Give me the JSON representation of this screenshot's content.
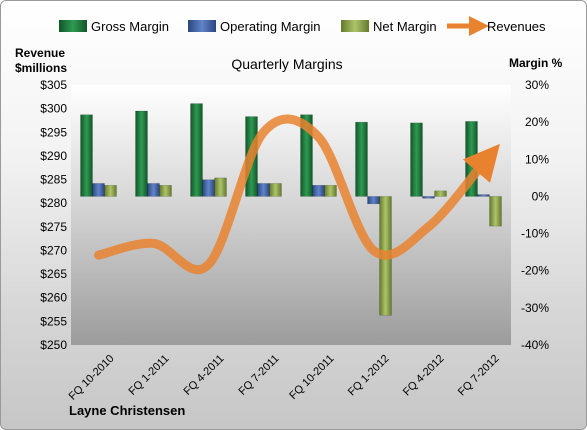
{
  "chart_data": {
    "type": "bar",
    "title": "Quarterly Margins",
    "categories": [
      "FQ 10-2010",
      "FQ 1-2011",
      "FQ 4-2011",
      "FQ 7-2011",
      "FQ 10-2011",
      "FQ 1-2012",
      "FQ 4-2012",
      "FQ 7-2012"
    ],
    "series": [
      {
        "name": "Gross Margin",
        "type": "bar",
        "axis": "right",
        "values": [
          22,
          23,
          25,
          21.5,
          22,
          20,
          19.8,
          20.2
        ],
        "color": "#1e7a3e"
      },
      {
        "name": "Operating Margin",
        "type": "bar",
        "axis": "right",
        "values": [
          3.5,
          3.5,
          4.5,
          3.5,
          3.0,
          -2.0,
          -0.5,
          0.5
        ],
        "color": "#3f63a8"
      },
      {
        "name": "Net Margin",
        "type": "bar",
        "axis": "right",
        "values": [
          3.0,
          3.0,
          5.0,
          3.5,
          3.0,
          -32.0,
          1.5,
          -8.0
        ],
        "color": "#8fa84a"
      },
      {
        "name": "Revenues",
        "type": "line",
        "axis": "left",
        "values": [
          269,
          271.5,
          267,
          295,
          294,
          270,
          275,
          288.5
        ],
        "color": "#e9822f"
      }
    ],
    "y_left": {
      "label_line1": "Revenue",
      "label_line2": "$millions",
      "min": 250,
      "max": 305,
      "step": 5,
      "prefix": "$"
    },
    "y_right": {
      "label": "Margin %",
      "min": -40,
      "max": 30,
      "step": 10,
      "suffix": "%"
    },
    "legend_position": "top",
    "grid": false,
    "author": "Layne Christensen"
  }
}
